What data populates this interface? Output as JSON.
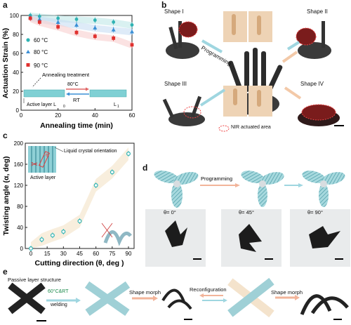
{
  "panels": {
    "a": "a",
    "b": "b",
    "c": "c",
    "d": "d",
    "e": "e"
  },
  "panel_a": {
    "inset": {
      "active_layer": "Active layer L",
      "active_sub": "0",
      "treatment": "Annealing treatment",
      "temp": "80°C",
      "rt": "RT",
      "l1": "L",
      "l1_sub": "1"
    }
  },
  "panel_b": {
    "shape1": "Shape I",
    "shape2": "Shape II",
    "shape3": "Shape III",
    "shape4": "Shape IV",
    "programming": "Programming",
    "legend": "NIR actuated area"
  },
  "panel_c": {
    "inset_label": "Liquid crystal orientation",
    "active_layer": "Active layer",
    "theta": "θ"
  },
  "panel_d": {
    "programming": "Programming",
    "angles": [
      "θ= 0°",
      "θ= 45°",
      "θ= 90°"
    ]
  },
  "panel_e": {
    "passive": "Passive layer structure",
    "welding_top": "60°C&RT",
    "welding_bottom": "welding",
    "morph1": "Shape morph",
    "reconfig": "Reconfiguration",
    "morph2": "Shape morph"
  },
  "chart_data": [
    {
      "type": "scatter",
      "xlabel": "Annealing time (min)",
      "ylabel": "Actuation Strain (%)",
      "xlim": [
        0,
        60
      ],
      "ylim": [
        0,
        100
      ],
      "xticks": [
        "0",
        "20",
        "40",
        "60"
      ],
      "yticks": [
        "0",
        "20",
        "40",
        "60",
        "80",
        "100"
      ],
      "series": [
        {
          "name": "60 °C",
          "color": "#2fb3b3",
          "marker": "circle",
          "x": [
            5,
            10,
            20,
            30,
            40,
            50,
            60
          ],
          "values": [
            100,
            99,
            97,
            96,
            95,
            93,
            90
          ]
        },
        {
          "name": "80 °C",
          "color": "#3a8fd6",
          "marker": "triangle",
          "x": [
            5,
            10,
            20,
            30,
            40,
            50,
            60
          ],
          "values": [
            98,
            96,
            93,
            90,
            87,
            85,
            83
          ]
        },
        {
          "name": "90 °C",
          "color": "#e0302e",
          "marker": "square",
          "x": [
            5,
            10,
            20,
            30,
            40,
            50,
            60
          ],
          "values": [
            97,
            93,
            88,
            82,
            78,
            76,
            69
          ]
        }
      ]
    },
    {
      "type": "scatter",
      "xlabel": "Cutting direction (θ, deg )",
      "ylabel": "Twisting angle (α, deg)",
      "xlim": [
        0,
        90
      ],
      "ylim": [
        0,
        200
      ],
      "xticks": [
        "0",
        "15",
        "30",
        "45",
        "60",
        "75",
        "90"
      ],
      "yticks": [
        "0",
        "40",
        "80",
        "120",
        "160",
        "200"
      ],
      "series": [
        {
          "color": "#2fb3b3",
          "x": [
            0,
            10,
            20,
            30,
            45,
            60,
            75,
            90
          ],
          "values": [
            0,
            17,
            25,
            32,
            52,
            120,
            145,
            180
          ]
        }
      ]
    }
  ]
}
